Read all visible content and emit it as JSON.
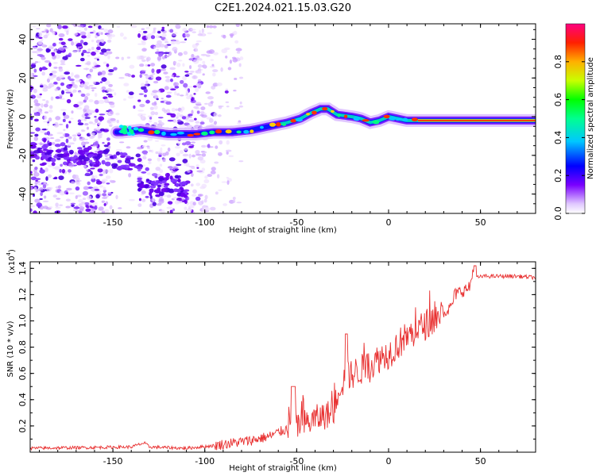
{
  "title": "C2E1.2024.021.15.03.G20",
  "chart_data": [
    {
      "type": "heatmap",
      "xlabel": "Height of straight line (km)",
      "ylabel": "Frequency (Hz)",
      "xlim": [
        -195,
        80
      ],
      "ylim": [
        -50,
        48
      ],
      "xticks": [
        -150,
        -100,
        -50,
        0,
        50
      ],
      "yticks": [
        -40,
        -20,
        0,
        20,
        40
      ],
      "colorbar": {
        "label": "Normalized spectral amplitude",
        "range": [
          0,
          1
        ],
        "ticks": [
          "0.0",
          "0.2",
          "0.4",
          "0.6",
          "0.8"
        ]
      },
      "ridge": {
        "description_points": [
          [
            -145,
            -8
          ],
          [
            -135,
            -7
          ],
          [
            -120,
            -9
          ],
          [
            -105,
            -9
          ],
          [
            -95,
            -8
          ],
          [
            -85,
            -8
          ],
          [
            -75,
            -7
          ],
          [
            -65,
            -5
          ],
          [
            -55,
            -3
          ],
          [
            -48,
            -1
          ],
          [
            -42,
            2
          ],
          [
            -37,
            4
          ],
          [
            -33,
            4
          ],
          [
            -28,
            1
          ],
          [
            -20,
            0
          ],
          [
            -15,
            -1
          ],
          [
            -10,
            -3
          ],
          [
            -5,
            -2
          ],
          [
            0,
            0
          ],
          [
            5,
            -1
          ],
          [
            10,
            -2
          ],
          [
            20,
            -2
          ],
          [
            40,
            -2
          ],
          [
            60,
            -2
          ],
          [
            80,
            -2
          ]
        ]
      }
    },
    {
      "type": "line",
      "xlabel": "Height of straight line (km)",
      "ylabel": "SNR (10 * v/v)",
      "multiplier": "(x10",
      "multiplier_exp": "4",
      "multiplier_close": ")",
      "xlim": [
        -195,
        80
      ],
      "ylim": [
        0,
        1.45
      ],
      "xticks": [
        -150,
        -100,
        -50,
        0,
        50
      ],
      "yticks": [
        "0.2",
        "0.4",
        "0.6",
        "0.8",
        "1.0",
        "1.2",
        "1.4"
      ],
      "color": "#e83030",
      "series": [
        {
          "anchors_x": [
            -195,
            -140,
            -133,
            -130,
            -110,
            -95,
            -85,
            -75,
            -65,
            -55,
            -45,
            -40,
            -35,
            -30,
            -27,
            -22,
            -15,
            -10,
            -5,
            0,
            5,
            10,
            15,
            20,
            25,
            30,
            34,
            36,
            40,
            44,
            46,
            48,
            52,
            60,
            70,
            80
          ],
          "anchors_y": [
            0.03,
            0.04,
            0.07,
            0.04,
            0.03,
            0.05,
            0.07,
            0.09,
            0.12,
            0.18,
            0.22,
            0.25,
            0.28,
            0.3,
            0.5,
            0.58,
            0.63,
            0.65,
            0.72,
            0.75,
            0.82,
            0.88,
            0.92,
            0.97,
            1.02,
            1.07,
            1.1,
            1.2,
            1.23,
            1.25,
            1.38,
            1.33,
            1.34,
            1.34,
            1.34,
            1.33
          ]
        }
      ]
    }
  ]
}
